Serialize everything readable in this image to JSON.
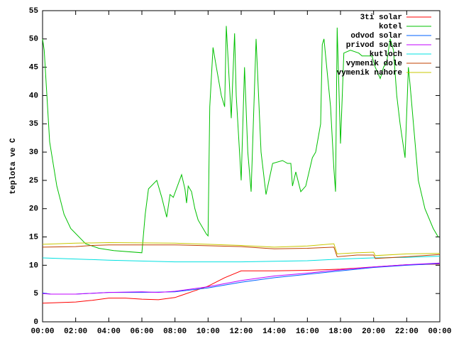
{
  "chart_data": {
    "type": "line",
    "ylabel": "teplota ve C",
    "xlim": [
      0,
      24
    ],
    "ylim": [
      0,
      55
    ],
    "yticks": [
      0,
      5,
      10,
      15,
      20,
      25,
      30,
      35,
      40,
      45,
      50,
      55
    ],
    "xticks": [
      {
        "value": 0,
        "label": "00:00"
      },
      {
        "value": 2,
        "label": "02:00"
      },
      {
        "value": 4,
        "label": "04:00"
      },
      {
        "value": 6,
        "label": "06:00"
      },
      {
        "value": 8,
        "label": "08:00"
      },
      {
        "value": 10,
        "label": "10:00"
      },
      {
        "value": 12,
        "label": "12:00"
      },
      {
        "value": 14,
        "label": "14:00"
      },
      {
        "value": 16,
        "label": "16:00"
      },
      {
        "value": 18,
        "label": "18:00"
      },
      {
        "value": 20,
        "label": "20:00"
      },
      {
        "value": 22,
        "label": "22:00"
      },
      {
        "value": 24,
        "label": "00:00"
      }
    ],
    "legend": "top-right",
    "series": [
      {
        "name": "3ti solar",
        "color": "#ff0000",
        "x": [
          0,
          2,
          3,
          4,
          5,
          6,
          7,
          8,
          9,
          10,
          11,
          12,
          14,
          16,
          18,
          20,
          22,
          24
        ],
        "values": [
          3.3,
          3.5,
          3.8,
          4.2,
          4.2,
          4.0,
          3.9,
          4.3,
          5.3,
          6.3,
          7.8,
          9.0,
          9.0,
          9.1,
          9.3,
          9.7,
          10.1,
          10.2
        ]
      },
      {
        "name": "kotel",
        "color": "#00c000",
        "x": [
          0,
          0.1,
          0.43,
          0.86,
          1.3,
          1.7,
          2.6,
          3.4,
          4.3,
          6,
          6.2,
          6.4,
          6.9,
          7.2,
          7.5,
          7.7,
          7.9,
          8.4,
          8.6,
          8.7,
          8.8,
          9,
          9.2,
          9.4,
          9.9,
          10,
          10.1,
          10.3,
          10.5,
          10.8,
          11,
          11.1,
          11.4,
          11.6,
          11.7,
          12,
          12.2,
          12.4,
          12.6,
          12.9,
          13.2,
          13.5,
          13.9,
          14.5,
          14.8,
          15,
          15.1,
          15.3,
          15.6,
          15.9,
          16.3,
          16.5,
          16.8,
          16.9,
          17,
          17.4,
          17.6,
          17.7,
          17.8,
          18,
          18.2,
          18.6,
          19.1,
          19.3,
          19.9,
          20.1,
          20.4,
          20.6,
          20.8,
          21,
          21.2,
          21.4,
          21.6,
          21.9,
          22.1,
          22.2,
          22.7,
          23.1,
          23.6,
          23.9
        ],
        "values": [
          50,
          48,
          31.8,
          24,
          19,
          16.5,
          13.8,
          13,
          12.6,
          12.2,
          19,
          23.5,
          25,
          22,
          18.5,
          22.5,
          22,
          26,
          23.5,
          21,
          24,
          23,
          20,
          18,
          15.5,
          15.2,
          38,
          48.5,
          45,
          40,
          38,
          52.3,
          36,
          51,
          40,
          25,
          45,
          30,
          23,
          50,
          30,
          22.5,
          28,
          28.5,
          28,
          28,
          24,
          26.5,
          23,
          24,
          29,
          30,
          35,
          49,
          50,
          38,
          27,
          23,
          52,
          31.5,
          47.5,
          48,
          47.5,
          47,
          47,
          45,
          43,
          45,
          46,
          50,
          48,
          40,
          35,
          29,
          45,
          42,
          25,
          20,
          16.5,
          15
        ]
      },
      {
        "name": "odvod solar",
        "color": "#0060ff",
        "x": [
          0,
          0.5,
          2,
          4,
          6,
          8,
          10,
          12,
          14,
          16,
          18,
          20,
          22,
          24
        ],
        "values": [
          5.1,
          4.9,
          4.9,
          5.2,
          5.2,
          5.3,
          6.0,
          7.0,
          7.8,
          8.4,
          9.0,
          9.6,
          10.0,
          10.3
        ]
      },
      {
        "name": "privod solar",
        "color": "#c000ff",
        "x": [
          0,
          0.5,
          2,
          4,
          6,
          7,
          8,
          10,
          12,
          14,
          16,
          18,
          20,
          22,
          24
        ],
        "values": [
          5.0,
          4.9,
          4.9,
          5.2,
          5.3,
          5.2,
          5.4,
          6.2,
          7.3,
          8.1,
          8.6,
          9.2,
          9.7,
          10.1,
          10.4
        ]
      },
      {
        "name": "kutloch",
        "color": "#00e0e0",
        "x": [
          0,
          4,
          8,
          12,
          16,
          18,
          20,
          22,
          24
        ],
        "values": [
          11.3,
          10.9,
          10.6,
          10.6,
          10.8,
          11.1,
          11.3,
          11.4,
          11.6
        ]
      },
      {
        "name": "vymenik dole",
        "color": "#c04000",
        "x": [
          0,
          2,
          3,
          4,
          8,
          12,
          14,
          16,
          17.6,
          17.8,
          19,
          20,
          20.1,
          22,
          24
        ],
        "values": [
          13.2,
          13.3,
          13.5,
          13.6,
          13.6,
          13.3,
          12.9,
          13.0,
          13.2,
          11.5,
          11.8,
          11.8,
          11.2,
          11.5,
          11.9
        ]
      },
      {
        "name": "vymenik nahore",
        "color": "#c8c800",
        "x": [
          0,
          2,
          4,
          8,
          12,
          14,
          16,
          17.6,
          17.8,
          19,
          20,
          20.1,
          22,
          24
        ],
        "values": [
          13.7,
          13.9,
          14.0,
          13.9,
          13.5,
          13.2,
          13.4,
          13.8,
          12.0,
          12.2,
          12.3,
          11.7,
          12.0,
          12.1
        ]
      }
    ]
  }
}
